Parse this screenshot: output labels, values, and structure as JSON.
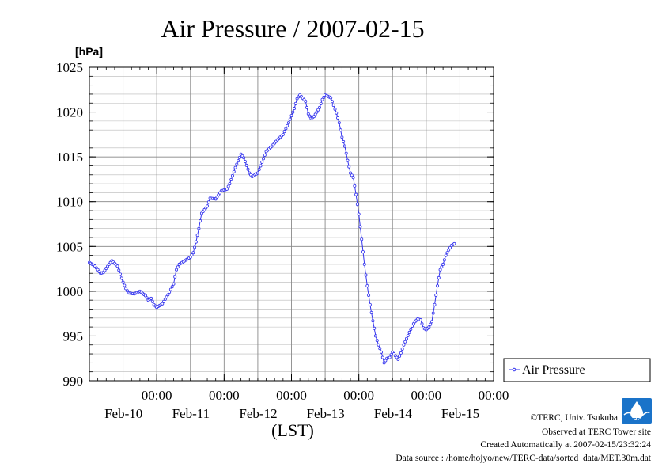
{
  "chart_data": {
    "type": "line",
    "title": "Air Pressure / 2007-02-15",
    "ylabel": "[hPa]",
    "xlabel": "(LST)",
    "ylim": [
      990,
      1025
    ],
    "yticks": [
      990,
      995,
      1000,
      1005,
      1010,
      1015,
      1020,
      1025
    ],
    "y_tick_labels": [
      "990",
      "995",
      "1000",
      "1005",
      "1010",
      "1015",
      "1020",
      "1025"
    ],
    "x_unit": "hours since Feb-09 12:00",
    "xlim": [
      0,
      144
    ],
    "x_ticks": [
      {
        "x": 24,
        "time": "00:00",
        "date": "Feb-10"
      },
      {
        "x": 48,
        "time": "00:00",
        "date": "Feb-11"
      },
      {
        "x": 72,
        "time": "00:00",
        "date": "Feb-12"
      },
      {
        "x": 96,
        "time": "00:00",
        "date": "Feb-13"
      },
      {
        "x": 120,
        "time": "00:00",
        "date": "Feb-14"
      },
      {
        "x": 144,
        "time": "00:00",
        "date": "Feb-15"
      }
    ],
    "x_minor_step": 3,
    "y_minor_step": 1,
    "grid": true,
    "legend_position": "right",
    "series": [
      {
        "name": "Air Pressure",
        "color": "#3333ee",
        "points": [
          [
            0,
            1003.2
          ],
          [
            2,
            1002.8
          ],
          [
            4,
            1002.0
          ],
          [
            5,
            1002.1
          ],
          [
            7,
            1003.0
          ],
          [
            8,
            1003.4
          ],
          [
            10,
            1002.8
          ],
          [
            12,
            1001.0
          ],
          [
            13,
            1000.3
          ],
          [
            14,
            999.8
          ],
          [
            16,
            999.7
          ],
          [
            18,
            1000.0
          ],
          [
            20,
            999.5
          ],
          [
            21,
            999.0
          ],
          [
            22,
            999.2
          ],
          [
            23,
            998.5
          ],
          [
            24,
            998.2
          ],
          [
            26,
            998.6
          ],
          [
            28,
            999.6
          ],
          [
            30,
            1000.8
          ],
          [
            31,
            1002.4
          ],
          [
            32,
            1003.0
          ],
          [
            34,
            1003.4
          ],
          [
            36,
            1003.8
          ],
          [
            37,
            1004.3
          ],
          [
            38,
            1005.5
          ],
          [
            39,
            1007.0
          ],
          [
            40,
            1008.7
          ],
          [
            42,
            1009.5
          ],
          [
            43,
            1010.4
          ],
          [
            45,
            1010.3
          ],
          [
            47,
            1011.2
          ],
          [
            49,
            1011.4
          ],
          [
            50,
            1012.0
          ],
          [
            52,
            1013.8
          ],
          [
            54,
            1015.3
          ],
          [
            55,
            1014.9
          ],
          [
            57,
            1013.2
          ],
          [
            58,
            1012.8
          ],
          [
            60,
            1013.2
          ],
          [
            62,
            1014.8
          ],
          [
            63,
            1015.6
          ],
          [
            65,
            1016.2
          ],
          [
            67,
            1016.9
          ],
          [
            69,
            1017.5
          ],
          [
            71,
            1018.8
          ],
          [
            73,
            1020.4
          ],
          [
            74,
            1021.5
          ],
          [
            75,
            1021.9
          ],
          [
            77,
            1021.2
          ],
          [
            78,
            1019.8
          ],
          [
            79,
            1019.3
          ],
          [
            80,
            1019.5
          ],
          [
            82,
            1020.5
          ],
          [
            83,
            1021.4
          ],
          [
            84,
            1021.9
          ],
          [
            86,
            1021.6
          ],
          [
            88,
            1019.9
          ],
          [
            89,
            1018.8
          ],
          [
            90,
            1017.2
          ],
          [
            91,
            1016.2
          ],
          [
            92,
            1014.6
          ],
          [
            93,
            1013.2
          ],
          [
            94,
            1012.7
          ],
          [
            95,
            1010.8
          ],
          [
            96,
            1008.6
          ],
          [
            97,
            1005.8
          ],
          [
            98,
            1003.0
          ],
          [
            99,
            1000.6
          ],
          [
            100,
            998.5
          ],
          [
            101,
            996.7
          ],
          [
            102,
            995.0
          ],
          [
            103,
            994.0
          ],
          [
            104,
            993.2
          ],
          [
            105,
            992.0
          ],
          [
            106,
            992.5
          ],
          [
            107,
            992.6
          ],
          [
            108,
            993.2
          ],
          [
            109,
            992.8
          ],
          [
            110,
            992.4
          ],
          [
            111,
            993.1
          ],
          [
            112,
            994.0
          ],
          [
            114,
            995.4
          ],
          [
            115,
            996.1
          ],
          [
            116,
            996.6
          ],
          [
            117,
            996.9
          ],
          [
            118,
            996.8
          ],
          [
            119,
            995.9
          ],
          [
            120,
            995.7
          ],
          [
            121,
            996.0
          ],
          [
            122,
            996.6
          ],
          [
            123,
            998.5
          ],
          [
            124,
            1000.6
          ],
          [
            125,
            1002.4
          ],
          [
            126,
            1003.0
          ],
          [
            127,
            1004.0
          ],
          [
            128,
            1004.6
          ],
          [
            129,
            1005.1
          ],
          [
            130,
            1005.3
          ]
        ]
      }
    ],
    "legend_label": "Air Pressure"
  },
  "credits": {
    "copyright": "©TERC, Univ. Tsukuba",
    "observed": "Observed at TERC Tower site",
    "created": "Created Automatically at 2007-02-15/23:32:24",
    "source": "Data source : /home/hojyo/new/TERC-data/sorted_data/MET.30m.dat",
    "logo_text": "TERC"
  },
  "colors": {
    "series": "#3333ee",
    "logo": "#1a73c9",
    "grid": "#b8b8b8"
  }
}
